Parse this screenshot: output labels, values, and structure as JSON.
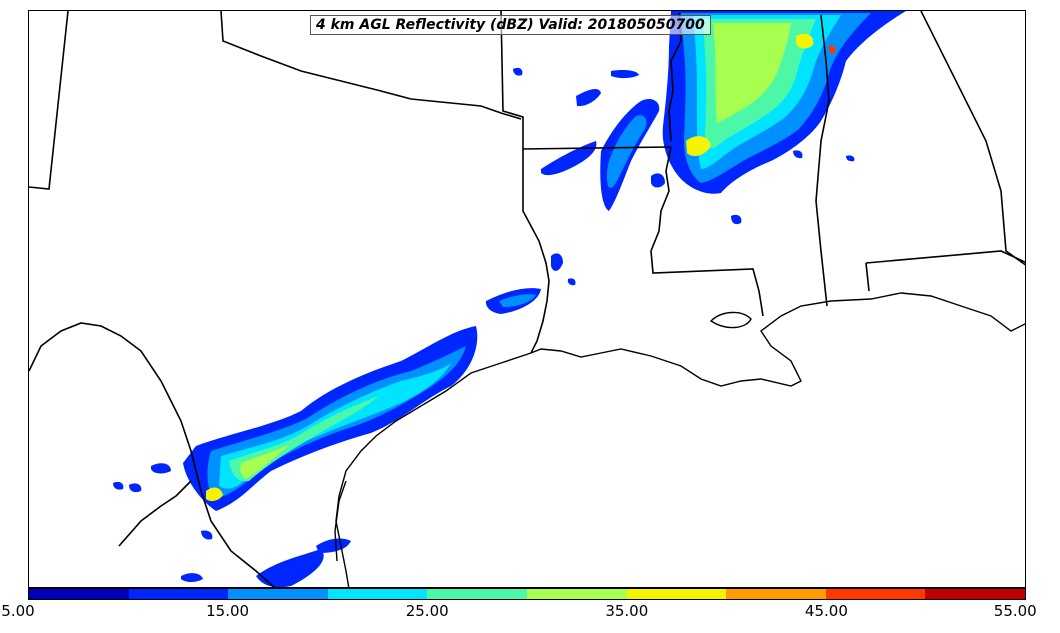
{
  "title": "4 km AGL Reflectivity (dBZ) Valid: 201805050700",
  "colorbar": {
    "colors": [
      "#0000b8",
      "#0026ff",
      "#0090ff",
      "#00e4ff",
      "#4cf8a8",
      "#a8ff50",
      "#f4f400",
      "#ff9c00",
      "#ff3800",
      "#c00000"
    ],
    "tick_labels": [
      "5.00",
      "15.00",
      "25.00",
      "35.00",
      "45.00",
      "55.00"
    ]
  },
  "layers": {
    "boundaries": "state-and-coast-lines",
    "precip_colors": {
      "low": "#0026ff",
      "mid": "#0090ff",
      "cyan": "#00e4ff",
      "green": "#4cf8a8",
      "lime": "#a8ff50",
      "yellow": "#f4f400",
      "red": "#ff3800"
    }
  }
}
